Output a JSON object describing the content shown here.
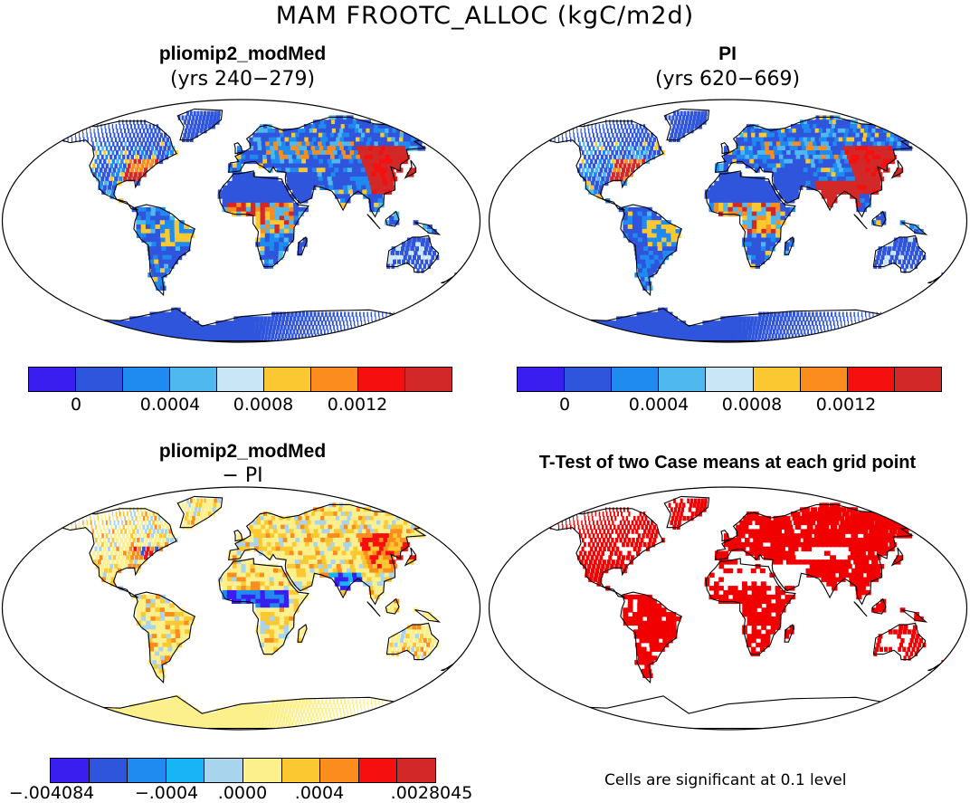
{
  "title": "MAM FROOTC_ALLOC (kgC/m2d)",
  "panels": [
    {
      "id": "a",
      "title": "pliomip2_modMed",
      "subtitle": "(yrs 240−279)",
      "scheme": "abs"
    },
    {
      "id": "b",
      "title": "PI",
      "subtitle": "(yrs 620−669)",
      "scheme": "abs"
    },
    {
      "id": "c",
      "title": "pliomip2_modMed",
      "subtitle": "− PI",
      "scheme": "diff"
    },
    {
      "id": "d",
      "title": "T-Test of two Case means at each grid point",
      "subtitle": "",
      "scheme": "sig"
    }
  ],
  "colorbar_abs": {
    "colors": [
      "#3a1ef0",
      "#2f55dc",
      "#1f8af0",
      "#4fb8ee",
      "#c8e6f5",
      "#fcc832",
      "#fb8c1e",
      "#f50f0f",
      "#d22828"
    ],
    "labels": [
      "0",
      "0.0004",
      "0.0008",
      "0.0012"
    ]
  },
  "colorbar_diff": {
    "colors": [
      "#3a1ef0",
      "#2f55dc",
      "#1f8af0",
      "#18b4f5",
      "#a8d4ee",
      "#fcf08c",
      "#fcc832",
      "#fb8c1e",
      "#f50f0f",
      "#d22828"
    ],
    "labels": [
      "−.004084",
      "−.0004",
      ".0000",
      ".0004",
      ".0028045"
    ]
  },
  "significance_color": "#f00000",
  "note": "Cells are significant at 0.1 level"
}
